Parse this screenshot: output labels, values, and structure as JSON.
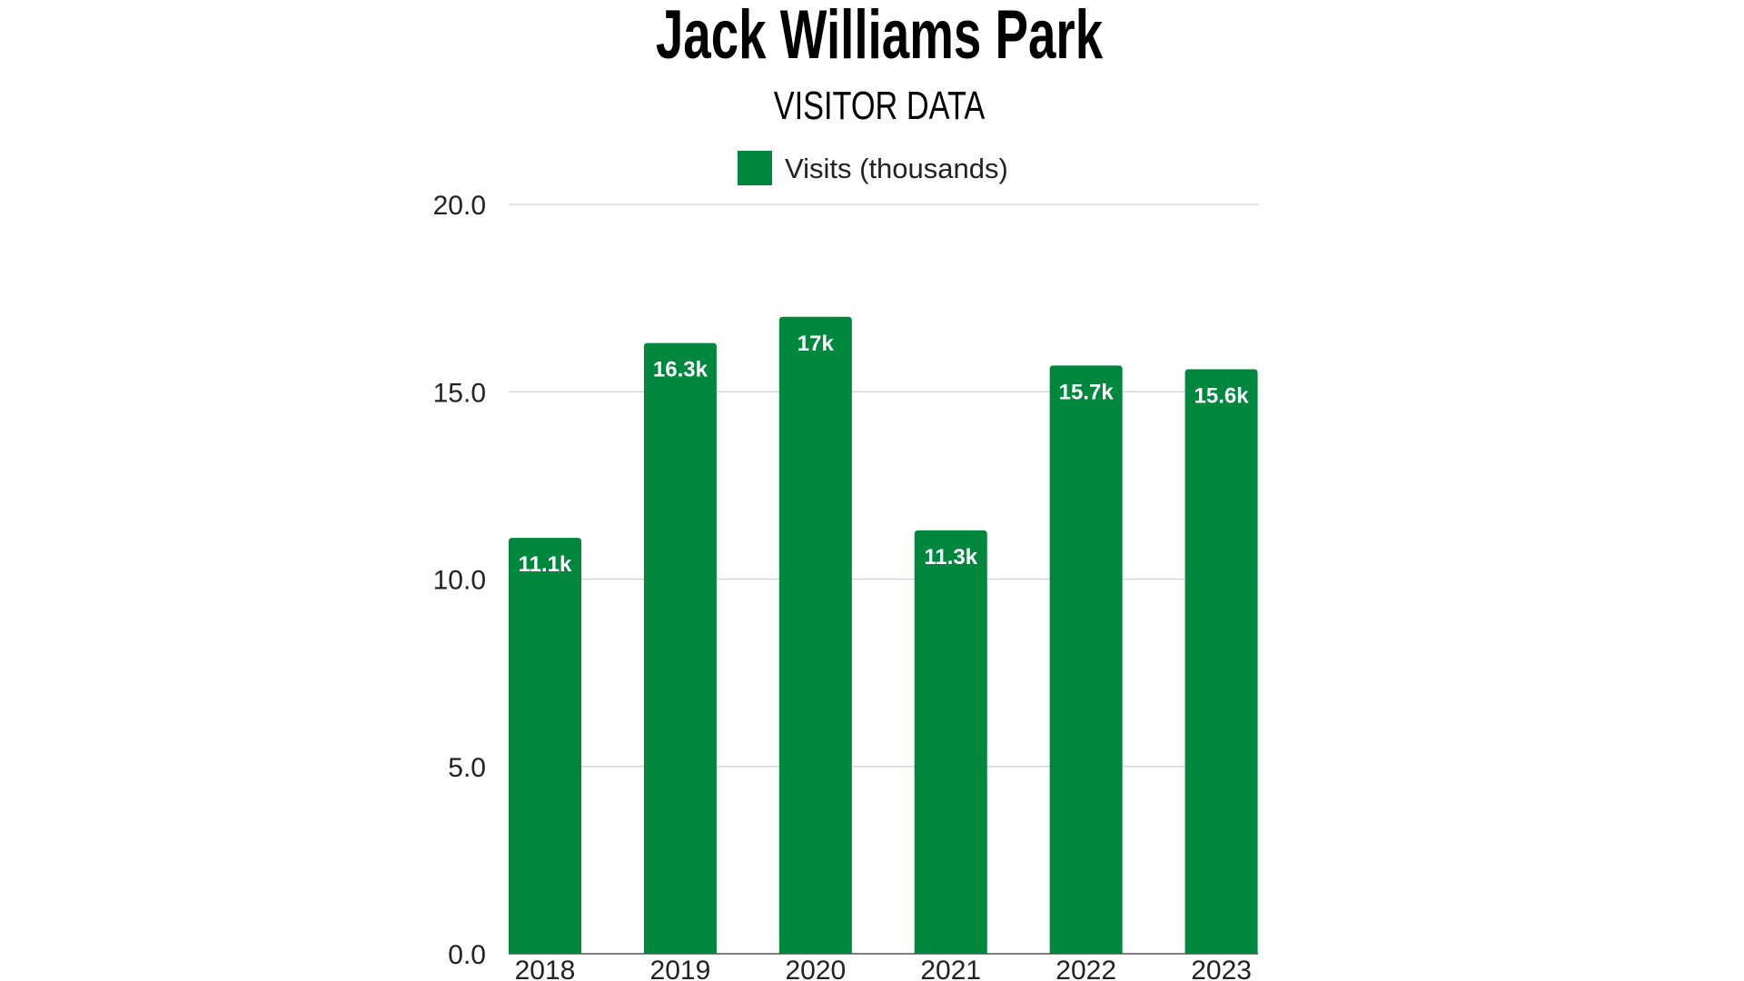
{
  "chart_data": {
    "type": "bar",
    "title": "Jack Williams Park",
    "subtitle": "VISITOR DATA",
    "xlabel": "",
    "ylabel": "",
    "categories": [
      "2018",
      "2019",
      "2020",
      "2021",
      "2022",
      "2023"
    ],
    "series": [
      {
        "name": "Visits (thousands)",
        "values": [
          11.1,
          16.3,
          17.0,
          11.3,
          15.7,
          15.6
        ],
        "data_labels": [
          "11.1k",
          "16.3k",
          "17k",
          "11.3k",
          "15.7k",
          "15.6k"
        ],
        "color": "#00873E"
      }
    ],
    "ylim": [
      0,
      20
    ],
    "y_ticks": [
      "0.0",
      "5.0",
      "10.0",
      "15.0",
      "20.0"
    ],
    "y_tick_values": [
      0,
      5,
      10,
      15,
      20
    ],
    "grid": true,
    "legend_position": "top-center"
  }
}
